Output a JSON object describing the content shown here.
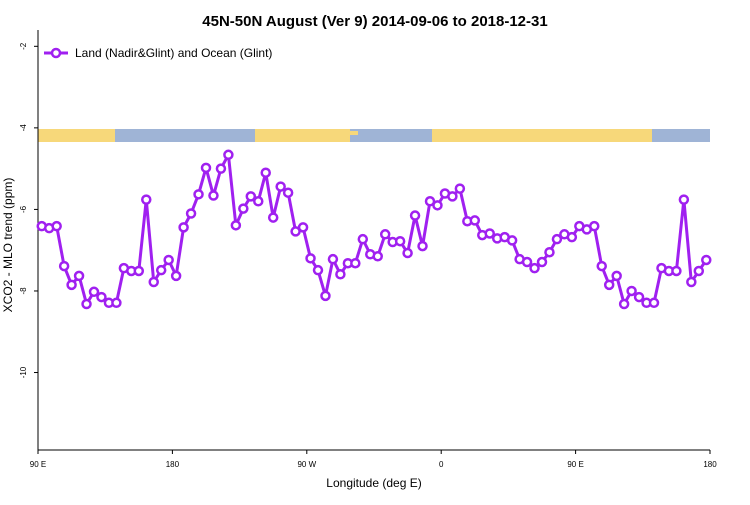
{
  "chart_data": {
    "type": "line",
    "title": "45N-50N August (Ver 9)   2014-09-06 to 2018-12-31",
    "x_label": "Longitude (deg E)",
    "y_label": "XCO2 - MLO trend (ppm)",
    "xlim": [
      90,
      540
    ],
    "ylim": [
      -11.9,
      -1.6
    ],
    "xticks": [
      {
        "value": 90,
        "label": "90 E"
      },
      {
        "value": 180,
        "label": "180"
      },
      {
        "value": 270,
        "label": "90 W"
      },
      {
        "value": 360,
        "label": "0"
      },
      {
        "value": 450,
        "label": "90 E"
      },
      {
        "value": 540,
        "label": "180"
      }
    ],
    "yticks": [
      -2,
      -4,
      -6,
      -8,
      -10
    ],
    "legend": "top-left",
    "x": [
      92.5,
      97.5,
      102.5,
      107.5,
      112.5,
      117.5,
      122.5,
      127.5,
      132.5,
      137.5,
      142.5,
      147.5,
      152.5,
      157.5,
      162.5,
      167.5,
      172.5,
      177.5,
      182.5,
      187.5,
      192.5,
      197.5,
      202.5,
      207.5,
      212.5,
      217.5,
      222.5,
      227.5,
      232.5,
      237.5,
      242.5,
      247.5,
      252.5,
      257.5,
      262.5,
      267.5,
      272.5,
      277.5,
      282.5,
      287.5,
      292.5,
      297.5,
      302.5,
      307.5,
      312.5,
      317.5,
      322.5,
      327.5,
      332.5,
      337.5,
      342.5,
      347.5,
      352.5,
      357.5,
      362.5,
      367.5,
      372.5,
      377.5,
      382.5,
      387.5,
      392.5,
      397.5,
      402.5,
      407.5,
      412.5,
      417.5,
      422.5,
      427.5,
      432.5,
      437.5,
      442.5,
      447.5,
      452.5,
      457.5,
      462.5,
      467.5,
      472.5,
      477.5,
      482.5,
      487.5,
      492.5,
      497.5,
      502.5,
      507.5,
      512.5,
      517.5,
      522.5,
      527.5,
      532.5,
      537.5
    ],
    "series": [
      {
        "name": "Land (Nadir&Glint) and Ocean (Glint)",
        "color": "#a020f0",
        "values": [
          -6.41,
          -6.46,
          -6.41,
          -7.39,
          -7.85,
          -7.63,
          -8.32,
          -8.02,
          -8.15,
          -8.29,
          -8.29,
          -7.44,
          -7.51,
          -7.51,
          -5.76,
          -7.78,
          -7.49,
          -7.24,
          -7.63,
          -6.44,
          -6.1,
          -5.63,
          -4.98,
          -5.66,
          -5.0,
          -4.66,
          -6.39,
          -5.98,
          -5.68,
          -5.8,
          -5.1,
          -6.2,
          -5.44,
          -5.59,
          -6.54,
          -6.44,
          -7.2,
          -7.49,
          -8.12,
          -7.22,
          -7.59,
          -7.32,
          -7.32,
          -6.73,
          -7.1,
          -7.15,
          -6.61,
          -6.8,
          -6.78,
          -7.07,
          -6.15,
          -6.9,
          -5.8,
          -5.9,
          -5.61,
          -5.68,
          -5.49,
          -6.29,
          -6.27,
          -6.63,
          -6.59,
          -6.71,
          -6.68,
          -6.76,
          -7.22,
          -7.29,
          -7.44,
          -7.29,
          -7.05,
          -6.73,
          -6.61,
          -6.68,
          -6.41,
          -6.49,
          -6.41,
          -7.39,
          -7.85,
          -7.63,
          -8.32,
          -8.0,
          -8.15,
          -8.29,
          -8.29,
          -7.44,
          -7.51,
          -7.51,
          -5.76,
          -7.78,
          -7.51,
          -7.24
        ]
      }
    ]
  }
}
